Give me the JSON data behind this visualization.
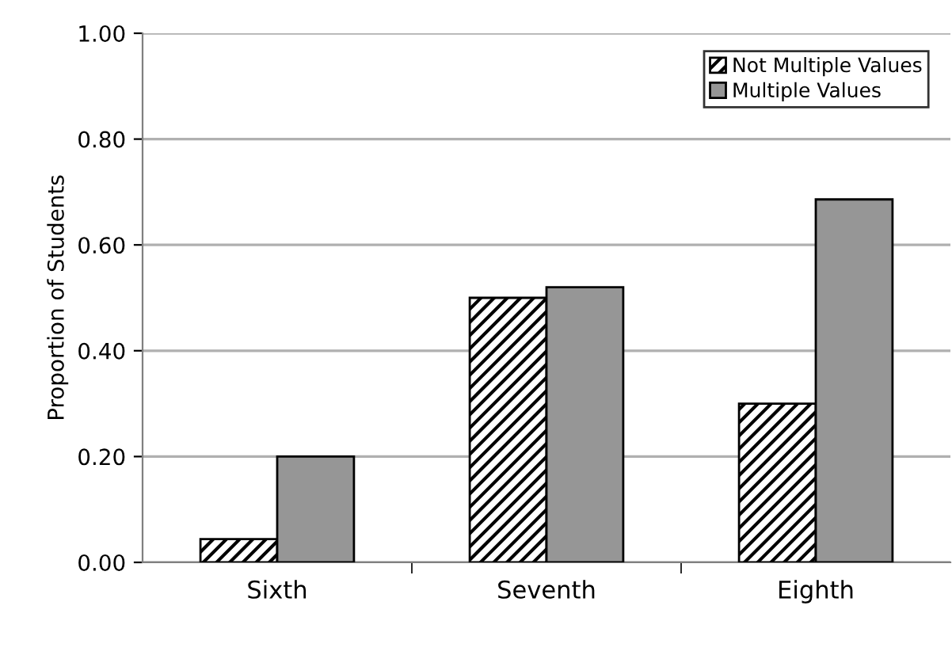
{
  "chart_data": {
    "type": "bar",
    "ylabel": "Proportion of Students",
    "categories": [
      "Sixth",
      "Seventh",
      "Eighth"
    ],
    "series": [
      {
        "name": "Not Multiple Values",
        "color": "#000000",
        "values": [
          0.044,
          0.5,
          0.3
        ]
      },
      {
        "name": "Multiple Values",
        "color": "#969696",
        "values": [
          0.2,
          0.52,
          0.686
        ]
      }
    ],
    "ylim": [
      0,
      1
    ],
    "yticks": [
      {
        "value": 0,
        "label": "0.00"
      },
      {
        "value": 0.2,
        "label": "0.20"
      },
      {
        "value": 0.4,
        "label": "0.40"
      },
      {
        "value": 0.6,
        "label": "0.60"
      },
      {
        "value": 0.8,
        "label": "0.80"
      },
      {
        "value": 1,
        "label": "1.00"
      }
    ],
    "grid": "y",
    "legend": "top right"
  }
}
